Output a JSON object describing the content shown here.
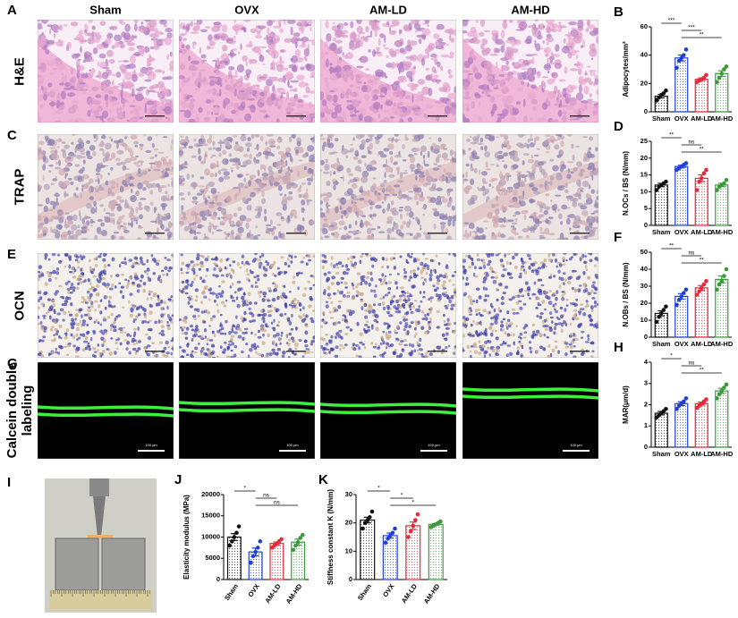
{
  "figure": {
    "columns": [
      "Sham",
      "OVX",
      "AM-LD",
      "AM-HD"
    ],
    "rows": [
      {
        "letter": "A",
        "label": "H&E"
      },
      {
        "letter": "C",
        "label": "TRAP"
      },
      {
        "letter": "E",
        "label": "OCN"
      },
      {
        "letter": "G",
        "label": "Calcein double labeling"
      }
    ],
    "photo_letter": "I",
    "scale_bar": "100 μm"
  },
  "chart_data": [
    {
      "type": "bar",
      "panel": "B",
      "ylabel": "Adipocytes/mm²",
      "categories": [
        "Sham",
        "OVX",
        "AM-LD",
        "AM-HD"
      ],
      "values": [
        11,
        38,
        23,
        27
      ],
      "errors": [
        1.2,
        2.1,
        0.9,
        2.0
      ],
      "points": [
        [
          8,
          10,
          12,
          13,
          15
        ],
        [
          31,
          36,
          38,
          40,
          44
        ],
        [
          21,
          22,
          23,
          24,
          26
        ],
        [
          21,
          24,
          27,
          30,
          32
        ]
      ],
      "colors": [
        "#111111",
        "#1f3fd6",
        "#e8293a",
        "#3a9a3a"
      ],
      "ylim": [
        0,
        60
      ],
      "yticks": [
        0,
        20,
        40,
        60
      ],
      "significance": [
        {
          "between": [
            "Sham",
            "OVX"
          ],
          "label": "***"
        },
        {
          "between": [
            "OVX",
            "AM-LD"
          ],
          "label": "***"
        },
        {
          "between": [
            "OVX",
            "AM-HD"
          ],
          "label": "**"
        }
      ]
    },
    {
      "type": "bar",
      "panel": "D",
      "ylabel": "N.OCs / BS (N/mm)",
      "categories": [
        "Sham",
        "OVX",
        "AM-LD",
        "AM-HD"
      ],
      "values": [
        12,
        17.5,
        14,
        12
      ],
      "errors": [
        0.5,
        0.4,
        1.0,
        0.5
      ],
      "points": [
        [
          10.5,
          11.5,
          12,
          12.5,
          13
        ],
        [
          16.5,
          17,
          17.5,
          18,
          18.5
        ],
        [
          10.5,
          13,
          14,
          15.5,
          16.5
        ],
        [
          10.5,
          11.5,
          12,
          12.5,
          13.5
        ]
      ],
      "colors": [
        "#111111",
        "#1f3fd6",
        "#e8293a",
        "#3a9a3a"
      ],
      "ylim": [
        0,
        25
      ],
      "yticks": [
        0,
        5,
        10,
        15,
        20,
        25
      ],
      "significance": [
        {
          "between": [
            "Sham",
            "OVX"
          ],
          "label": "**"
        },
        {
          "between": [
            "OVX",
            "AM-LD"
          ],
          "label": "ns"
        },
        {
          "between": [
            "OVX",
            "AM-HD"
          ],
          "label": "**"
        }
      ]
    },
    {
      "type": "bar",
      "panel": "F",
      "ylabel": "N.OBs / BS (N/mm)",
      "categories": [
        "Sham",
        "OVX",
        "AM-LD",
        "AM-HD"
      ],
      "values": [
        14,
        24,
        29,
        34
      ],
      "errors": [
        1.5,
        1.6,
        1.4,
        2.0
      ],
      "points": [
        [
          9,
          12,
          14,
          16,
          18
        ],
        [
          19,
          22,
          24,
          26,
          28
        ],
        [
          25,
          27,
          29,
          31,
          33
        ],
        [
          28,
          31,
          33,
          36,
          40
        ]
      ],
      "colors": [
        "#111111",
        "#1f3fd6",
        "#e8293a",
        "#3a9a3a"
      ],
      "ylim": [
        0,
        50
      ],
      "yticks": [
        0,
        10,
        20,
        30,
        40,
        50
      ],
      "significance": [
        {
          "between": [
            "Sham",
            "OVX"
          ],
          "label": "**"
        },
        {
          "between": [
            "OVX",
            "AM-LD"
          ],
          "label": "ns"
        },
        {
          "between": [
            "OVX",
            "AM-HD"
          ],
          "label": "**"
        }
      ]
    },
    {
      "type": "bar",
      "panel": "H",
      "ylabel": "MAR(μm/d)",
      "categories": [
        "Sham",
        "OVX",
        "AM-LD",
        "AM-HD"
      ],
      "values": [
        1.6,
        2.05,
        2.05,
        2.65
      ],
      "errors": [
        0.08,
        0.09,
        0.07,
        0.12
      ],
      "points": [
        [
          1.4,
          1.5,
          1.6,
          1.7,
          1.8
        ],
        [
          1.8,
          1.95,
          2.05,
          2.15,
          2.3
        ],
        [
          1.85,
          1.95,
          2.05,
          2.15,
          2.25
        ],
        [
          2.3,
          2.5,
          2.65,
          2.8,
          2.95
        ]
      ],
      "colors": [
        "#111111",
        "#1f3fd6",
        "#e8293a",
        "#3a9a3a"
      ],
      "ylim": [
        0,
        4
      ],
      "yticks": [
        0,
        1,
        2,
        3,
        4
      ],
      "significance": [
        {
          "between": [
            "Sham",
            "OVX"
          ],
          "label": "*"
        },
        {
          "between": [
            "OVX",
            "AM-LD"
          ],
          "label": "ns"
        },
        {
          "between": [
            "OVX",
            "AM-HD"
          ],
          "label": "**"
        }
      ]
    },
    {
      "type": "bar",
      "panel": "J",
      "ylabel": "Elasticity modulus (MPa)",
      "categories": [
        "Sham",
        "OVX",
        "AM-LD",
        "AM-HD"
      ],
      "values": [
        10000,
        6500,
        8500,
        8800
      ],
      "errors": [
        800,
        900,
        350,
        700
      ],
      "points": [
        [
          8000,
          9000,
          10000,
          11000,
          12500
        ],
        [
          4000,
          5500,
          6500,
          7500,
          9000
        ],
        [
          7500,
          8000,
          8500,
          9000,
          9500
        ],
        [
          7000,
          8000,
          8800,
          9800,
          10500
        ]
      ],
      "colors": [
        "#111111",
        "#1f3fd6",
        "#e8293a",
        "#3a9a3a"
      ],
      "ylim": [
        0,
        20000
      ],
      "yticks": [
        0,
        5000,
        10000,
        15000,
        20000
      ],
      "significance": [
        {
          "between": [
            "Sham",
            "OVX"
          ],
          "label": "*"
        },
        {
          "between": [
            "OVX",
            "AM-LD"
          ],
          "label": "ns"
        },
        {
          "between": [
            "OVX",
            "AM-HD"
          ],
          "label": "ns"
        }
      ]
    },
    {
      "type": "bar",
      "panel": "K",
      "ylabel": "Stiffness constant K (N/mm)",
      "categories": [
        "Sham",
        "OVX",
        "AM-LD",
        "AM-HD"
      ],
      "values": [
        21,
        15.5,
        19,
        19.5
      ],
      "errors": [
        1,
        0.9,
        1.3,
        0.3
      ],
      "points": [
        [
          18,
          20,
          21,
          22,
          24
        ],
        [
          13,
          14.5,
          15.5,
          16.5,
          18
        ],
        [
          15,
          17,
          19,
          21,
          23
        ],
        [
          18.5,
          19,
          19.5,
          20,
          20.5
        ]
      ],
      "colors": [
        "#111111",
        "#1f3fd6",
        "#e8293a",
        "#3a9a3a"
      ],
      "ylim": [
        0,
        30
      ],
      "yticks": [
        0,
        10,
        20,
        30
      ],
      "significance": [
        {
          "between": [
            "Sham",
            "OVX"
          ],
          "label": "*"
        },
        {
          "between": [
            "OVX",
            "AM-LD"
          ],
          "label": "*"
        },
        {
          "between": [
            "OVX",
            "AM-HD"
          ],
          "label": "*"
        }
      ]
    }
  ]
}
